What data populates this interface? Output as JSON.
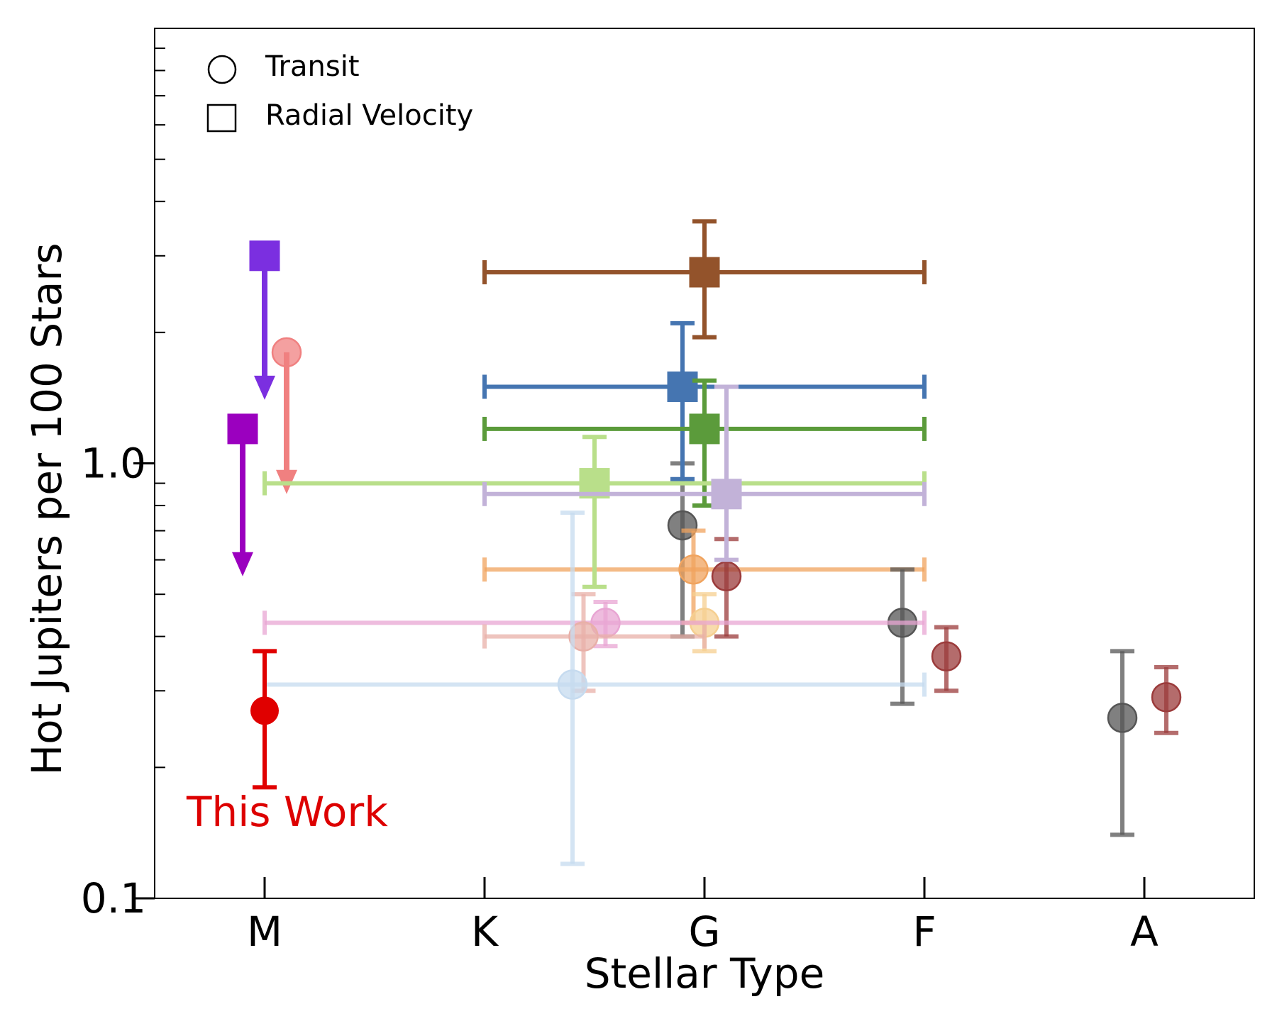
{
  "chart_data": {
    "type": "scatter",
    "title": "",
    "xlabel": "Stellar Type",
    "ylabel": "Hot Jupiters per 100 Stars",
    "categories": [
      "M",
      "K",
      "G",
      "F",
      "A"
    ],
    "xlim": [
      -0.5,
      4.5
    ],
    "ylim": [
      0.1,
      10
    ],
    "yscale": "log",
    "yticks": [
      0.1,
      1.0
    ],
    "ytick_labels": [
      "0.1",
      "1.0"
    ],
    "grid": false,
    "legend": {
      "placement": "top-left",
      "entries": [
        {
          "label": "Transit",
          "marker": "circle"
        },
        {
          "label": "Radial Velocity",
          "marker": "square"
        }
      ]
    },
    "annotations": [
      {
        "text": "This Work",
        "color": "#dd0000",
        "near_x": 0.15,
        "near_y": 0.15
      }
    ],
    "points": [
      {
        "marker": "square",
        "color": "#7b2fe0",
        "x": 0.0,
        "y": 3.0,
        "upper_limit": true,
        "arrow_to": 1.4
      },
      {
        "marker": "circle",
        "color": "#f08080",
        "x": 0.1,
        "y": 1.8,
        "upper_limit": true,
        "arrow_to": 0.85
      },
      {
        "marker": "square",
        "color": "#9b00bf",
        "x": -0.1,
        "y": 1.2,
        "upper_limit": true,
        "arrow_to": 0.55
      },
      {
        "marker": "circle",
        "color": "#e00000",
        "x": 0.0,
        "y": 0.27,
        "yerr": [
          0.18,
          0.37
        ],
        "this_work": true
      },
      {
        "marker": "square",
        "color": "#93532b",
        "x": 2.0,
        "y": 2.75,
        "xerr": [
          1.0,
          3.0
        ],
        "yerr": [
          1.95,
          3.6
        ]
      },
      {
        "marker": "square",
        "color": "#4575b1",
        "x": 1.9,
        "y": 1.5,
        "xerr": [
          1.0,
          3.0
        ],
        "yerr": [
          0.92,
          2.1
        ]
      },
      {
        "marker": "square",
        "color": "#5b9b3b",
        "x": 2.0,
        "y": 1.2,
        "xerr": [
          1.0,
          3.0
        ],
        "yerr": [
          0.8,
          1.55
        ]
      },
      {
        "marker": "square",
        "color": "#b9df8a",
        "x": 1.5,
        "y": 0.9,
        "xerr": [
          0.0,
          3.0
        ],
        "yerr": [
          0.52,
          1.15
        ]
      },
      {
        "marker": "square",
        "color": "#c2b2d8",
        "x": 2.1,
        "y": 0.85,
        "xerr": [
          1.0,
          3.0
        ],
        "yerr": [
          0.6,
          1.5
        ]
      },
      {
        "marker": "circle",
        "color": "#555555",
        "x": 1.9,
        "y": 0.72,
        "yerr": [
          0.4,
          1.0
        ]
      },
      {
        "marker": "circle",
        "color": "#f0a35e",
        "x": 1.95,
        "y": 0.57,
        "xerr": [
          1.0,
          3.0
        ],
        "yerr": [
          0.43,
          0.7
        ]
      },
      {
        "marker": "circle",
        "color": "#9b3b3b",
        "x": 2.1,
        "y": 0.55,
        "yerr": [
          0.4,
          0.67
        ]
      },
      {
        "marker": "circle",
        "color": "#555555",
        "x": 2.9,
        "y": 0.43,
        "yerr": [
          0.28,
          0.57
        ]
      },
      {
        "marker": "circle",
        "color": "#9b3b3b",
        "x": 3.1,
        "y": 0.36,
        "yerr": [
          0.3,
          0.42
        ]
      },
      {
        "marker": "circle",
        "color": "#555555",
        "x": 3.9,
        "y": 0.26,
        "yerr": [
          0.14,
          0.37
        ]
      },
      {
        "marker": "circle",
        "color": "#9b3b3b",
        "x": 4.1,
        "y": 0.29,
        "yerr": [
          0.24,
          0.34
        ]
      },
      {
        "marker": "circle",
        "color": "#f5cf90",
        "x": 2.0,
        "y": 0.43,
        "yerr": [
          0.37,
          0.5
        ]
      },
      {
        "marker": "circle",
        "color": "#e8a6d3",
        "x": 1.55,
        "y": 0.43,
        "xerr": [
          0.0,
          3.0
        ],
        "yerr": [
          0.38,
          0.48
        ]
      },
      {
        "marker": "circle",
        "color": "#e8b0a8",
        "x": 1.45,
        "y": 0.4,
        "xerr": [
          1.0,
          2.0
        ],
        "yerr": [
          0.3,
          0.5
        ]
      },
      {
        "marker": "circle",
        "color": "#c6dbef",
        "x": 1.4,
        "y": 0.31,
        "xerr": [
          0.0,
          3.0
        ],
        "yerr": [
          0.12,
          0.77
        ]
      }
    ]
  }
}
